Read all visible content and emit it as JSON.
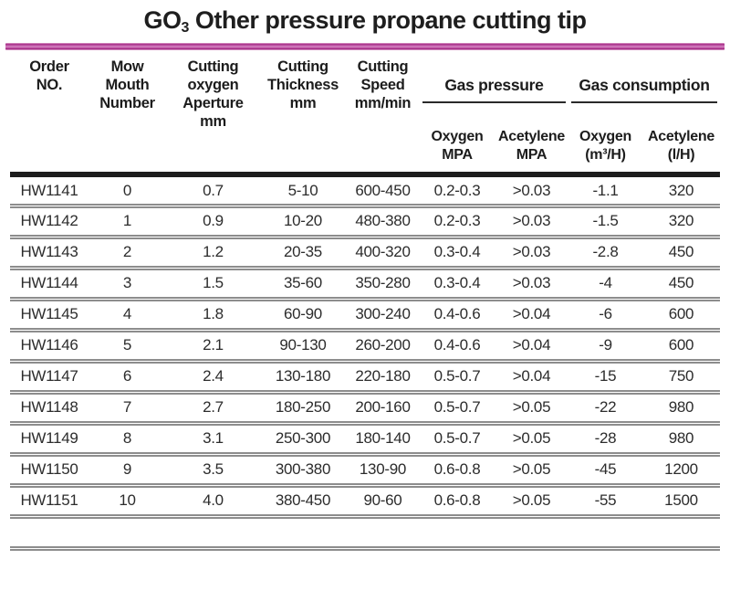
{
  "title": {
    "prefix": "GO",
    "subscript": "3",
    "rest": " Other pressure propane cutting tip"
  },
  "colors": {
    "accent_magenta": "#a62e87",
    "header_rule_black": "#1d1d1d",
    "row_divider_gray": "#8d8d8d"
  },
  "table": {
    "columns": [
      "Order\nNO.",
      "Mow\nMouth\nNumber",
      "Cutting\noxygen\nAperture\nmm",
      "Cutting\nThickness\nmm",
      "Cutting\nSpeed\nmm/min"
    ],
    "groups": [
      {
        "label": "Gas pressure",
        "subs": [
          "Oxygen\nMPA",
          "Acetylene\nMPA"
        ]
      },
      {
        "label": "Gas consumption",
        "subs": [
          "Oxygen\n(m³/H)",
          "Acetylene\n(l/H)"
        ]
      }
    ],
    "rows": [
      [
        "HW1141",
        "0",
        "0.7",
        "5-10",
        "600-450",
        "0.2-0.3",
        ">0.03",
        "-1.1",
        "320"
      ],
      [
        "HW1142",
        "1",
        "0.9",
        "10-20",
        "480-380",
        "0.2-0.3",
        ">0.03",
        "-1.5",
        "320"
      ],
      [
        "HW1143",
        "2",
        "1.2",
        "20-35",
        "400-320",
        "0.3-0.4",
        ">0.03",
        "-2.8",
        "450"
      ],
      [
        "HW1144",
        "3",
        "1.5",
        "35-60",
        "350-280",
        "0.3-0.4",
        ">0.03",
        "-4",
        "450"
      ],
      [
        "HW1145",
        "4",
        "1.8",
        "60-90",
        "300-240",
        "0.4-0.6",
        ">0.04",
        "-6",
        "600"
      ],
      [
        "HW1146",
        "5",
        "2.1",
        "90-130",
        "260-200",
        "0.4-0.6",
        ">0.04",
        "-9",
        "600"
      ],
      [
        "HW1147",
        "6",
        "2.4",
        "130-180",
        "220-180",
        "0.5-0.7",
        ">0.04",
        "-15",
        "750"
      ],
      [
        "HW1148",
        "7",
        "2.7",
        "180-250",
        "200-160",
        "0.5-0.7",
        ">0.05",
        "-22",
        "980"
      ],
      [
        "HW1149",
        "8",
        "3.1",
        "250-300",
        "180-140",
        "0.5-0.7",
        ">0.05",
        "-28",
        "980"
      ],
      [
        "HW1150",
        "9",
        "3.5",
        "300-380",
        "130-90",
        "0.6-0.8",
        ">0.05",
        "-45",
        "1200"
      ],
      [
        "HW1151",
        "10",
        "4.0",
        "380-450",
        "90-60",
        "0.6-0.8",
        ">0.05",
        "-55",
        "1500"
      ]
    ]
  }
}
